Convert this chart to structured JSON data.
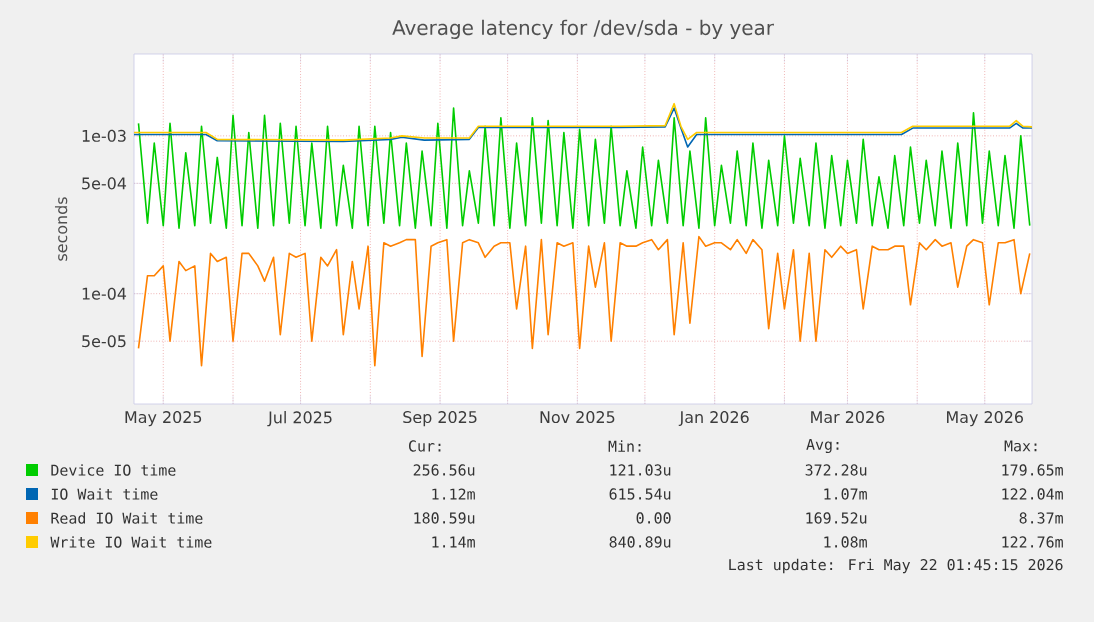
{
  "chart_data": {
    "type": "line",
    "title": "Average latency for /dev/sda - by year",
    "ylabel": "seconds",
    "log": "y",
    "grid": true,
    "legend": "bottom",
    "xlim": [
      "2025-04-18",
      "2026-05-22"
    ],
    "xticks": [
      {
        "value": "2025-05-01",
        "label": "May 2025"
      },
      {
        "value": "2025-06-01",
        "label": null
      },
      {
        "value": "2025-07-01",
        "label": "Jul 2025"
      },
      {
        "value": "2025-08-01",
        "label": null
      },
      {
        "value": "2025-09-01",
        "label": "Sep 2025"
      },
      {
        "value": "2025-10-01",
        "label": null
      },
      {
        "value": "2025-11-01",
        "label": "Nov 2025"
      },
      {
        "value": "2025-12-01",
        "label": null
      },
      {
        "value": "2026-01-01",
        "label": "Jan 2026"
      },
      {
        "value": "2026-02-01",
        "label": null
      },
      {
        "value": "2026-03-01",
        "label": "Mar 2026"
      },
      {
        "value": "2026-04-01",
        "label": null
      },
      {
        "value": "2026-05-01",
        "label": "May 2026"
      }
    ],
    "ylim": [
      2e-05,
      0.0033
    ],
    "yticks": [
      {
        "value": 5e-05,
        "label": "5e-05"
      },
      {
        "value": 0.0001,
        "label": "1e-04"
      },
      {
        "value": 0.0005,
        "label": "5e-04"
      },
      {
        "value": 0.001,
        "label": "1e-03"
      }
    ],
    "x": [
      "2025-04-20",
      "2025-04-24",
      "2025-04-27",
      "2025-05-01",
      "2025-05-04",
      "2025-05-08",
      "2025-05-11",
      "2025-05-15",
      "2025-05-18",
      "2025-05-22",
      "2025-05-25",
      "2025-05-29",
      "2025-06-01",
      "2025-06-05",
      "2025-06-08",
      "2025-06-12",
      "2025-06-15",
      "2025-06-19",
      "2025-06-22",
      "2025-06-26",
      "2025-06-29",
      "2025-07-03",
      "2025-07-06",
      "2025-07-10",
      "2025-07-13",
      "2025-07-17",
      "2025-07-20",
      "2025-07-24",
      "2025-07-27",
      "2025-07-31",
      "2025-08-03",
      "2025-08-07",
      "2025-08-10",
      "2025-08-14",
      "2025-08-17",
      "2025-08-21",
      "2025-08-24",
      "2025-08-28",
      "2025-08-31",
      "2025-09-04",
      "2025-09-07",
      "2025-09-11",
      "2025-09-14",
      "2025-09-18",
      "2025-09-21",
      "2025-09-25",
      "2025-09-28",
      "2025-10-02",
      "2025-10-05",
      "2025-10-09",
      "2025-10-12",
      "2025-10-16",
      "2025-10-19",
      "2025-10-23",
      "2025-10-26",
      "2025-10-30",
      "2025-11-02",
      "2025-11-06",
      "2025-11-09",
      "2025-11-13",
      "2025-11-16",
      "2025-11-20",
      "2025-11-23",
      "2025-11-27",
      "2025-11-30",
      "2025-12-04",
      "2025-12-07",
      "2025-12-11",
      "2025-12-14",
      "2025-12-18",
      "2025-12-21",
      "2025-12-25",
      "2025-12-28",
      "2026-01-01",
      "2026-01-04",
      "2026-01-08",
      "2026-01-11",
      "2026-01-15",
      "2026-01-18",
      "2026-01-22",
      "2026-01-25",
      "2026-01-29",
      "2026-02-01",
      "2026-02-05",
      "2026-02-08",
      "2026-02-12",
      "2026-02-15",
      "2026-02-19",
      "2026-02-22",
      "2026-02-26",
      "2026-03-01",
      "2026-03-05",
      "2026-03-08",
      "2026-03-12",
      "2026-03-15",
      "2026-03-19",
      "2026-03-22",
      "2026-03-26",
      "2026-03-29",
      "2026-04-02",
      "2026-04-05",
      "2026-04-09",
      "2026-04-12",
      "2026-04-16",
      "2026-04-19",
      "2026-04-23",
      "2026-04-26",
      "2026-04-30",
      "2026-05-03",
      "2026-05-07",
      "2026-05-10",
      "2026-05-14",
      "2026-05-17",
      "2026-05-21"
    ],
    "series": [
      {
        "name": "Device IO time",
        "color": "#00cc00",
        "values": [
          0.0012,
          0.00028,
          0.0009,
          0.00027,
          0.0012,
          0.00026,
          0.00078,
          0.00027,
          0.00115,
          0.00028,
          0.00073,
          0.00026,
          0.00135,
          0.00027,
          0.00105,
          0.00026,
          0.00135,
          0.00027,
          0.0012,
          0.00028,
          0.00115,
          0.00027,
          0.0009,
          0.00026,
          0.00115,
          0.00027,
          0.00065,
          0.00026,
          0.00115,
          0.00027,
          0.00115,
          0.00028,
          0.00105,
          0.00027,
          0.0009,
          0.00026,
          0.0008,
          0.00027,
          0.0012,
          0.00026,
          0.0015,
          0.00027,
          0.0006,
          0.00028,
          0.00115,
          0.00027,
          0.0013,
          0.00026,
          0.0009,
          0.00027,
          0.0013,
          0.00028,
          0.00125,
          0.00027,
          0.00105,
          0.00026,
          0.0011,
          0.00027,
          0.00095,
          0.00028,
          0.00115,
          0.00027,
          0.0006,
          0.00026,
          0.00085,
          0.00027,
          0.0007,
          0.00028,
          0.0013,
          0.00027,
          0.0008,
          0.00026,
          0.0013,
          0.00027,
          0.00065,
          0.00028,
          0.0008,
          0.00027,
          0.0009,
          0.00026,
          0.0007,
          0.00027,
          0.001,
          0.00028,
          0.00072,
          0.00027,
          0.0009,
          0.00026,
          0.00075,
          0.00027,
          0.0007,
          0.00028,
          0.00095,
          0.00027,
          0.00055,
          0.00026,
          0.00075,
          0.00027,
          0.00085,
          0.00028,
          0.0007,
          0.00027,
          0.0008,
          0.00026,
          0.0009,
          0.00027,
          0.0014,
          0.00028,
          0.0008,
          0.00027,
          0.00075,
          0.00026,
          0.001,
          0.00027
        ]
      },
      {
        "name": "IO Wait time",
        "color": "#0066b3",
        "x": [
          "2025-04-18",
          "2025-05-20",
          "2025-05-25",
          "2025-07-20",
          "2025-08-10",
          "2025-08-15",
          "2025-08-25",
          "2025-09-14",
          "2025-09-18",
          "2025-10-15",
          "2025-11-20",
          "2025-12-10",
          "2025-12-14",
          "2025-12-17",
          "2025-12-20",
          "2025-12-24",
          "2026-02-20",
          "2026-03-25",
          "2026-03-30",
          "2026-05-12",
          "2026-05-15",
          "2026-05-18",
          "2026-05-22"
        ],
        "values": [
          0.00102,
          0.00102,
          0.00093,
          0.00092,
          0.00095,
          0.00098,
          0.00094,
          0.00095,
          0.00113,
          0.00113,
          0.00113,
          0.00114,
          0.0015,
          0.00112,
          0.00085,
          0.00102,
          0.00102,
          0.00102,
          0.00112,
          0.00112,
          0.0012,
          0.00112,
          0.00112
        ]
      },
      {
        "name": "Read IO Wait time",
        "color": "#ff8000",
        "values": [
          4.5e-05,
          0.00013,
          0.00013,
          0.00015,
          5e-05,
          0.00016,
          0.00014,
          0.00015,
          3.5e-05,
          0.00018,
          0.00016,
          0.00017,
          5e-05,
          0.00018,
          0.00018,
          0.00015,
          0.00012,
          0.00017,
          5.5e-05,
          0.00018,
          0.00017,
          0.00018,
          5e-05,
          0.00017,
          0.00015,
          0.00019,
          5.5e-05,
          0.00016,
          8e-05,
          0.0002,
          3.5e-05,
          0.00021,
          0.0002,
          0.00021,
          0.00022,
          0.00022,
          4e-05,
          0.0002,
          0.00021,
          0.00022,
          5e-05,
          0.00021,
          0.00022,
          0.00021,
          0.00017,
          0.0002,
          0.00021,
          0.00021,
          8e-05,
          0.0002,
          4.5e-05,
          0.00022,
          5.5e-05,
          0.00021,
          0.0002,
          0.00021,
          4.5e-05,
          0.0002,
          0.00011,
          0.00021,
          5e-05,
          0.00021,
          0.0002,
          0.0002,
          0.00021,
          0.00022,
          0.00019,
          0.00022,
          5.5e-05,
          0.00021,
          6.5e-05,
          0.00023,
          0.0002,
          0.00021,
          0.00021,
          0.00019,
          0.00022,
          0.00018,
          0.00022,
          0.00019,
          6e-05,
          0.00018,
          8e-05,
          0.00019,
          5e-05,
          0.00018,
          5e-05,
          0.00019,
          0.00017,
          0.0002,
          0.00018,
          0.00019,
          8e-05,
          0.0002,
          0.00019,
          0.00019,
          0.0002,
          0.0002,
          8.5e-05,
          0.00021,
          0.00019,
          0.00022,
          0.0002,
          0.00021,
          0.00011,
          0.0002,
          0.00022,
          0.00021,
          8.5e-05,
          0.00021,
          0.00021,
          0.00022,
          0.0001,
          0.00018
        ]
      },
      {
        "name": "Write IO Wait time",
        "color": "#ffcc00",
        "x": [
          "2025-04-18",
          "2025-05-20",
          "2025-05-25",
          "2025-07-20",
          "2025-08-10",
          "2025-08-15",
          "2025-08-25",
          "2025-09-14",
          "2025-09-18",
          "2025-10-15",
          "2025-11-20",
          "2025-12-10",
          "2025-12-14",
          "2025-12-17",
          "2025-12-20",
          "2025-12-24",
          "2026-02-20",
          "2026-03-25",
          "2026-03-30",
          "2026-05-12",
          "2026-05-15",
          "2026-05-18",
          "2026-05-22"
        ],
        "values": [
          0.00105,
          0.00105,
          0.00095,
          0.00094,
          0.00097,
          0.001,
          0.00097,
          0.00097,
          0.00115,
          0.00115,
          0.00115,
          0.00116,
          0.0016,
          0.00115,
          0.00095,
          0.00105,
          0.00105,
          0.00105,
          0.00115,
          0.00115,
          0.00125,
          0.00115,
          0.00114
        ]
      }
    ],
    "annotations": [
      "Cur:",
      "Min:",
      "Avg:",
      "Max:",
      "256.56u",
      "121.03u",
      "372.28u",
      "179.65m",
      "1.12m",
      "615.54u",
      "1.07m",
      "122.04m",
      "180.59u",
      "0.00",
      "169.52u",
      "8.37m",
      "1.14m",
      "840.89u",
      "1.08m",
      "122.76m",
      "Last update: Fri May 22 01:45:15 2026"
    ]
  }
}
